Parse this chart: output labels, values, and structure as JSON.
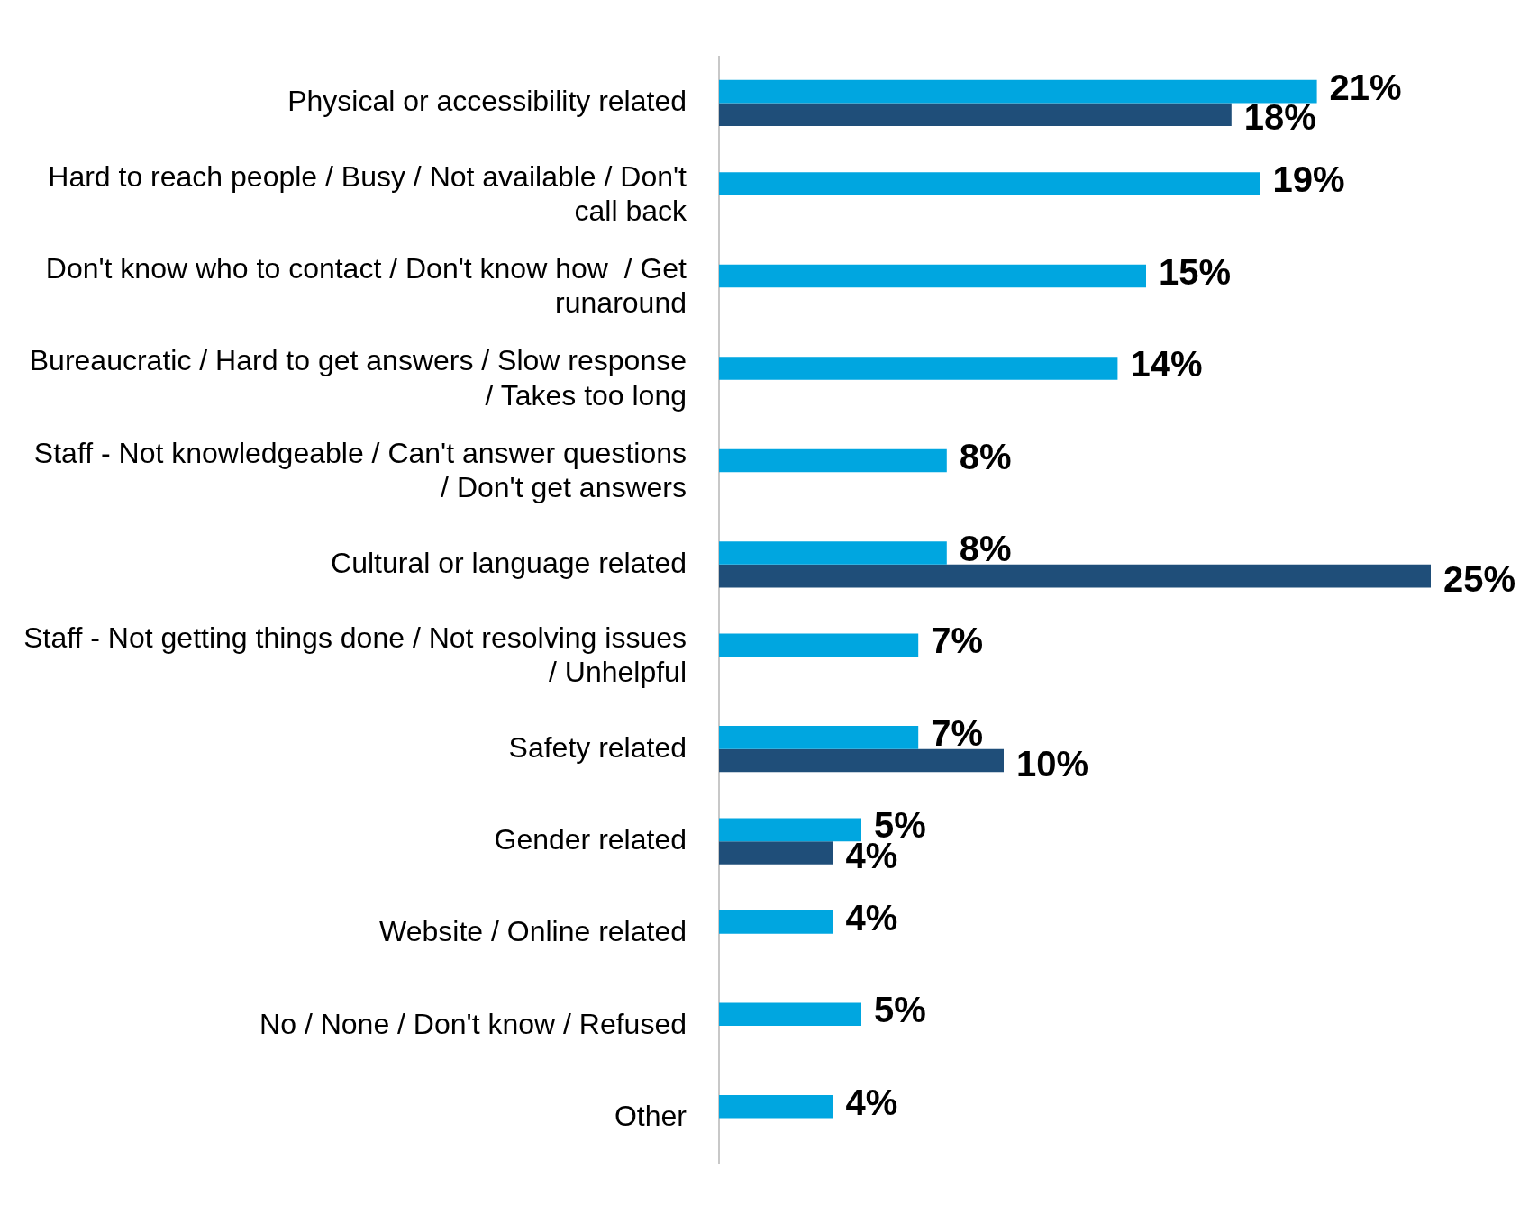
{
  "chart_data": {
    "type": "bar",
    "orientation": "horizontal",
    "categories": [
      "Physical or accessibility related",
      "Hard to reach people / Busy / Not available / Don't call back",
      "Don't know who to contact / Don't know how  / Get runaround",
      "Bureaucratic / Hard to get answers / Slow response / Takes too long",
      "Staff - Not knowledgeable / Can't answer questions / Don't get answers",
      "Cultural or language related",
      "Staff - Not getting things done / Not resolving issues / Unhelpful",
      "Safety related",
      "Gender related",
      "Website / Online related",
      "No / None / Don't know / Refused",
      "Other"
    ],
    "series": [
      {
        "color": "#00a6e0",
        "values": [
          21,
          19,
          15,
          14,
          8,
          8,
          7,
          7,
          5,
          4,
          5,
          4
        ],
        "value_labels": [
          "21%",
          "19%",
          "15%",
          "14%",
          "8%",
          "8%",
          "7%",
          "7%",
          "5%",
          "4%",
          "5%",
          "4%"
        ]
      },
      {
        "color": "#1f4e79",
        "values": [
          18,
          null,
          null,
          null,
          null,
          25,
          null,
          10,
          4,
          null,
          null,
          null
        ],
        "value_labels": [
          "18%",
          null,
          null,
          null,
          null,
          "25%",
          null,
          "10%",
          "4%",
          null,
          null,
          null
        ]
      }
    ],
    "grid": false,
    "legend": false
  }
}
